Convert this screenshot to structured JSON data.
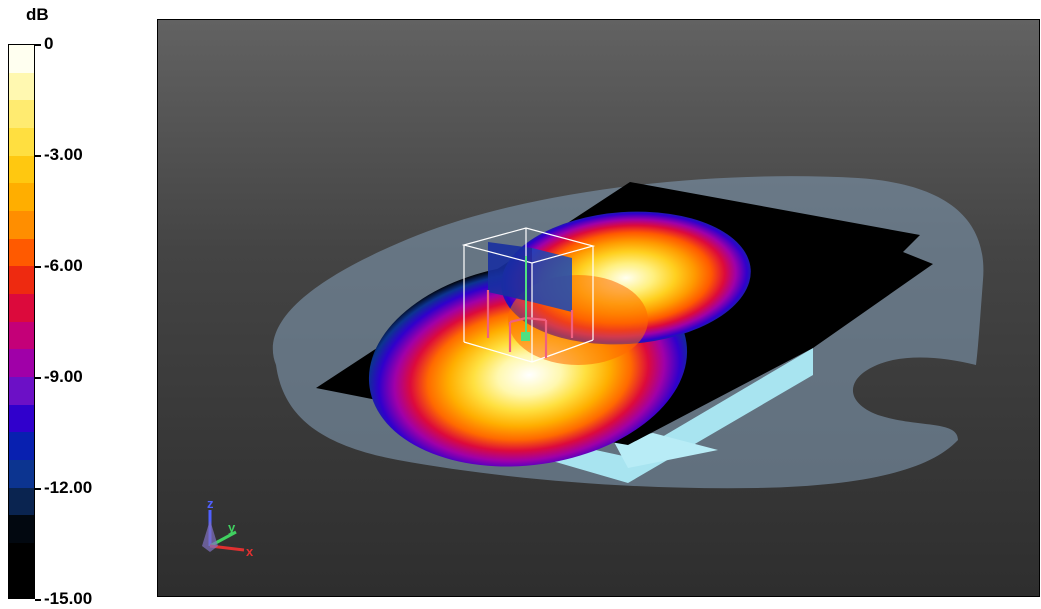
{
  "legend": {
    "unit": "dB",
    "ticks": [
      "0",
      "-3.00",
      "-6.00",
      "-9.00",
      "-12.00",
      "-15.00"
    ],
    "range": [
      0,
      -15
    ],
    "band_colors": [
      "#fffff0",
      "#fff8b0",
      "#ffeb70",
      "#ffdf40",
      "#ffc810",
      "#ffae00",
      "#ff8e00",
      "#ff5a00",
      "#ee2a10",
      "#dc0a3c",
      "#c40078",
      "#a000a8",
      "#6c10c6",
      "#3000cc",
      "#0820b0",
      "#0c3490",
      "#0a2450",
      "#020810",
      "#000000",
      "#000000"
    ]
  },
  "axes_triad": {
    "x_label": "x",
    "y_label": "y",
    "z_label": "z",
    "x_color": "#e03030",
    "y_color": "#40d060",
    "z_color": "#5060ff"
  },
  "scene": {
    "background_top": "#626262",
    "background_bottom": "#2e2e2e",
    "ground_plane_color": "#7a90a6",
    "slab_color": "#000000",
    "slab_edge_color": "#a8e4f0",
    "cabinet_color": "#ffffff",
    "panel_color": "#1830a0"
  }
}
